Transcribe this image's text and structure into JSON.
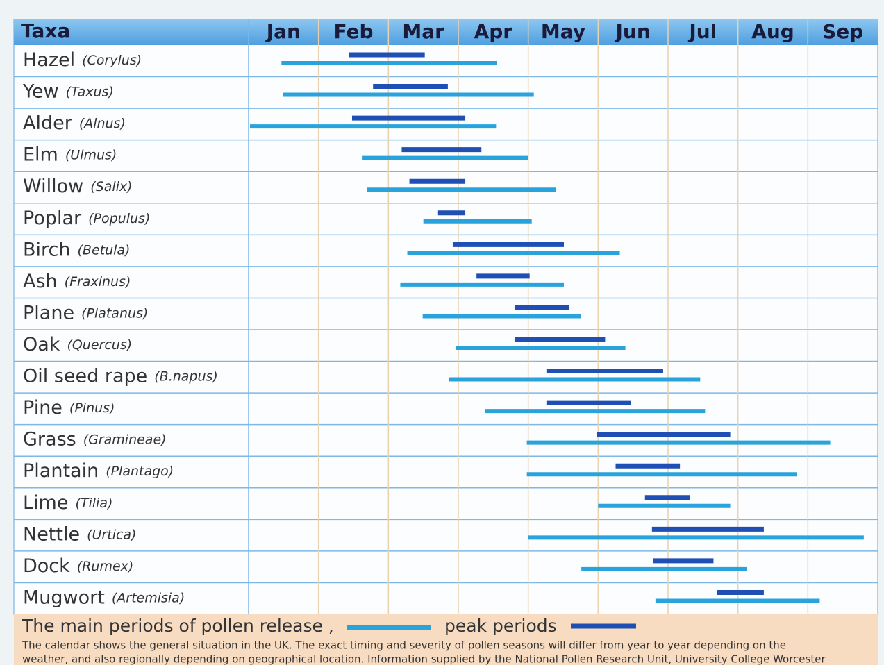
{
  "chart_data": {
    "type": "gantt",
    "header": "Taxa",
    "months": [
      "Jan",
      "Feb",
      "Mar",
      "Apr",
      "May",
      "Jun",
      "Jul",
      "Aug",
      "Sep"
    ],
    "categories": [
      "Hazel",
      "Yew",
      "Alder",
      "Elm",
      "Willow",
      "Poplar",
      "Birch",
      "Ash",
      "Plane",
      "Oak",
      "Oil seed rape",
      "Pine",
      "Grass",
      "Plantain",
      "Lime",
      "Nettle",
      "Dock",
      "Mugwort"
    ],
    "latin": [
      "(Corylus)",
      "(Taxus)",
      "(Alnus)",
      "(Ulmus)",
      "(Salix)",
      "(Populus)",
      "(Betula)",
      "(Fraxinus)",
      "(Platanus)",
      "(Quercus)",
      "(B.napus)",
      "(Pinus)",
      "(Gramineae)",
      "(Plantago)",
      "(Tilia)",
      "(Urtica)",
      "(Rumex)",
      "(Artemisia)"
    ],
    "xlim": [
      0,
      9
    ],
    "series": [
      {
        "name": "The main periods of pollen release ,",
        "color": "#29a3dc",
        "start": [
          0.47,
          0.49,
          0.02,
          1.63,
          1.69,
          2.5,
          2.27,
          2.17,
          2.49,
          2.96,
          2.87,
          3.38,
          3.98,
          3.98,
          5.0,
          4.0,
          4.76,
          5.82
        ],
        "end": [
          3.55,
          4.08,
          3.54,
          4.0,
          4.4,
          4.05,
          5.31,
          4.51,
          4.75,
          5.39,
          6.46,
          6.53,
          8.32,
          7.84,
          6.89,
          8.8,
          7.13,
          8.17
        ]
      },
      {
        "name": "peak periods",
        "color": "#1f4fb4",
        "start": [
          1.44,
          1.78,
          1.48,
          2.19,
          2.3,
          2.71,
          2.92,
          3.26,
          3.81,
          3.81,
          4.26,
          4.26,
          4.98,
          5.25,
          5.67,
          5.77,
          5.79,
          6.7
        ],
        "end": [
          2.52,
          2.85,
          3.1,
          3.33,
          3.1,
          3.1,
          4.51,
          4.02,
          4.58,
          5.1,
          5.93,
          5.47,
          6.89,
          6.17,
          6.31,
          7.37,
          6.65,
          7.37
        ]
      }
    ],
    "note_lines": [
      "The calendar shows the general situation in the UK.  The exact timing and severity of pollen seasons will differ from year to year depending on the",
      "weather, and also regionally depending on geographical location.  Information supplied by the National Pollen Research Unit, University College Worcester"
    ]
  }
}
